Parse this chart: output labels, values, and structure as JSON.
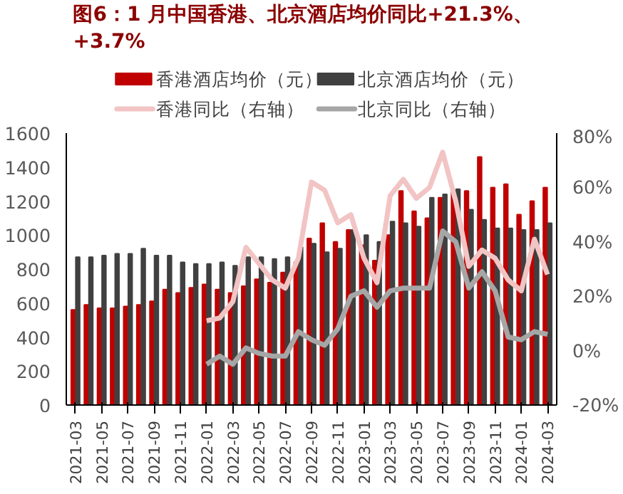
{
  "chart_data": {
    "type": "bar",
    "title": "图6：1 月中国香港、北京酒店均价同比+21.3%、+3.7%",
    "categories": [
      "2021-03",
      null,
      "2021-05",
      null,
      "2021-07",
      null,
      "2021-09",
      null,
      "2021-11",
      null,
      "2022-01",
      null,
      "2022-03",
      null,
      "2022-05",
      null,
      "2022-07",
      null,
      "2022-09",
      null,
      "2022-11",
      null,
      "2023-01",
      null,
      "2023-03",
      null,
      "2023-05",
      null,
      "2023-07",
      null,
      "2023-09",
      null,
      "2023-11",
      null,
      "2024-01",
      null,
      "2024-03"
    ],
    "series": [
      {
        "name": "香港酒店均价（元）",
        "color": "#c00000",
        "values": [
          560,
          590,
          570,
          570,
          580,
          590,
          610,
          680,
          660,
          690,
          710,
          680,
          660,
          700,
          740,
          720,
          780,
          840,
          980,
          1070,
          960,
          1030,
          940,
          850,
          1000,
          1260,
          1140,
          1100,
          1220,
          1260,
          1260,
          1460,
          1280,
          1300,
          1120,
          1200,
          1280
        ]
      },
      {
        "name": "北京酒店均价（元）",
        "color": "#404040",
        "values": [
          870,
          870,
          880,
          890,
          890,
          920,
          880,
          880,
          840,
          830,
          830,
          840,
          820,
          870,
          870,
          860,
          870,
          930,
          950,
          900,
          920,
          1030,
          1000,
          960,
          1080,
          1070,
          1050,
          1220,
          1240,
          1270,
          1150,
          1090,
          1040,
          1040,
          1030,
          1030,
          1070
        ]
      },
      {
        "name": "香港同比（右轴）",
        "type": "line",
        "axis": "y2",
        "color": "#f2c4c4",
        "values": [
          null,
          null,
          null,
          null,
          null,
          null,
          null,
          null,
          null,
          null,
          11,
          12,
          18,
          38,
          32,
          26,
          23,
          34,
          62,
          59,
          47,
          50,
          34,
          25,
          57,
          63,
          56,
          60,
          73,
          55,
          31,
          37,
          34,
          26,
          22,
          41,
          28
        ]
      },
      {
        "name": "北京同比（右轴）",
        "type": "line",
        "axis": "y2",
        "color": "#a6a6a6",
        "values": [
          null,
          null,
          null,
          null,
          null,
          null,
          null,
          null,
          null,
          null,
          -5,
          -2,
          -5,
          1,
          -1,
          -2,
          -2,
          7,
          4,
          2,
          8,
          20,
          22,
          16,
          22,
          23,
          23,
          23,
          44,
          40,
          23,
          29,
          22,
          5,
          4,
          7,
          6
        ]
      }
    ],
    "ylim": [
      0,
      1600
    ],
    "yticks": [
      0,
      200,
      400,
      600,
      800,
      1000,
      1200,
      1400,
      1600
    ],
    "y2lim": [
      -20,
      80
    ],
    "y2ticks": [
      {
        "value": -20,
        "label": "-20%"
      },
      {
        "value": 0,
        "label": "0%"
      },
      {
        "value": 20,
        "label": "20%"
      },
      {
        "value": 40,
        "label": "40%"
      },
      {
        "value": 60,
        "label": "60%"
      },
      {
        "value": 80,
        "label": "80%"
      }
    ],
    "legend": "top",
    "grid": false
  }
}
